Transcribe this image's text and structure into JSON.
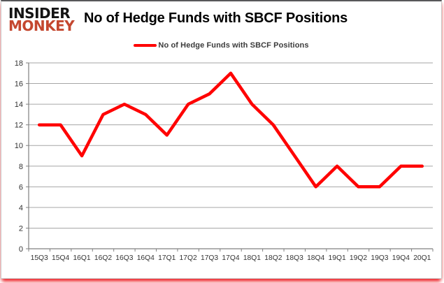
{
  "brand": {
    "line1": "INSIDER",
    "line2": "MONKEY",
    "line2_color": "#c4472f"
  },
  "header": {
    "title": "No of Hedge Funds with SBCF Positions"
  },
  "legend": {
    "label": "No of Hedge Funds with SBCF Positions",
    "line_color": "#ff0000"
  },
  "chart_data": {
    "type": "line",
    "title": "No of Hedge Funds with SBCF Positions",
    "categories": [
      "15Q3",
      "15Q4",
      "16Q1",
      "16Q2",
      "16Q3",
      "16Q4",
      "17Q1",
      "17Q2",
      "17Q3",
      "17Q4",
      "18Q1",
      "18Q2",
      "18Q3",
      "18Q4",
      "19Q1",
      "19Q2",
      "19Q3",
      "19Q4",
      "20Q1"
    ],
    "series": [
      {
        "name": "No of Hedge Funds with SBCF Positions",
        "color": "#ff0000",
        "values": [
          12,
          12,
          9,
          13,
          14,
          13,
          11,
          14,
          15,
          17,
          14,
          12,
          9,
          6,
          8,
          6,
          6,
          8,
          8
        ]
      }
    ],
    "xlabel": "",
    "ylabel": "",
    "ylim": [
      0,
      18
    ],
    "ytick_step": 2,
    "grid": true,
    "gridline_color": "#a6a6a6",
    "axis_color": "#808080",
    "legend_position": "top-center"
  }
}
